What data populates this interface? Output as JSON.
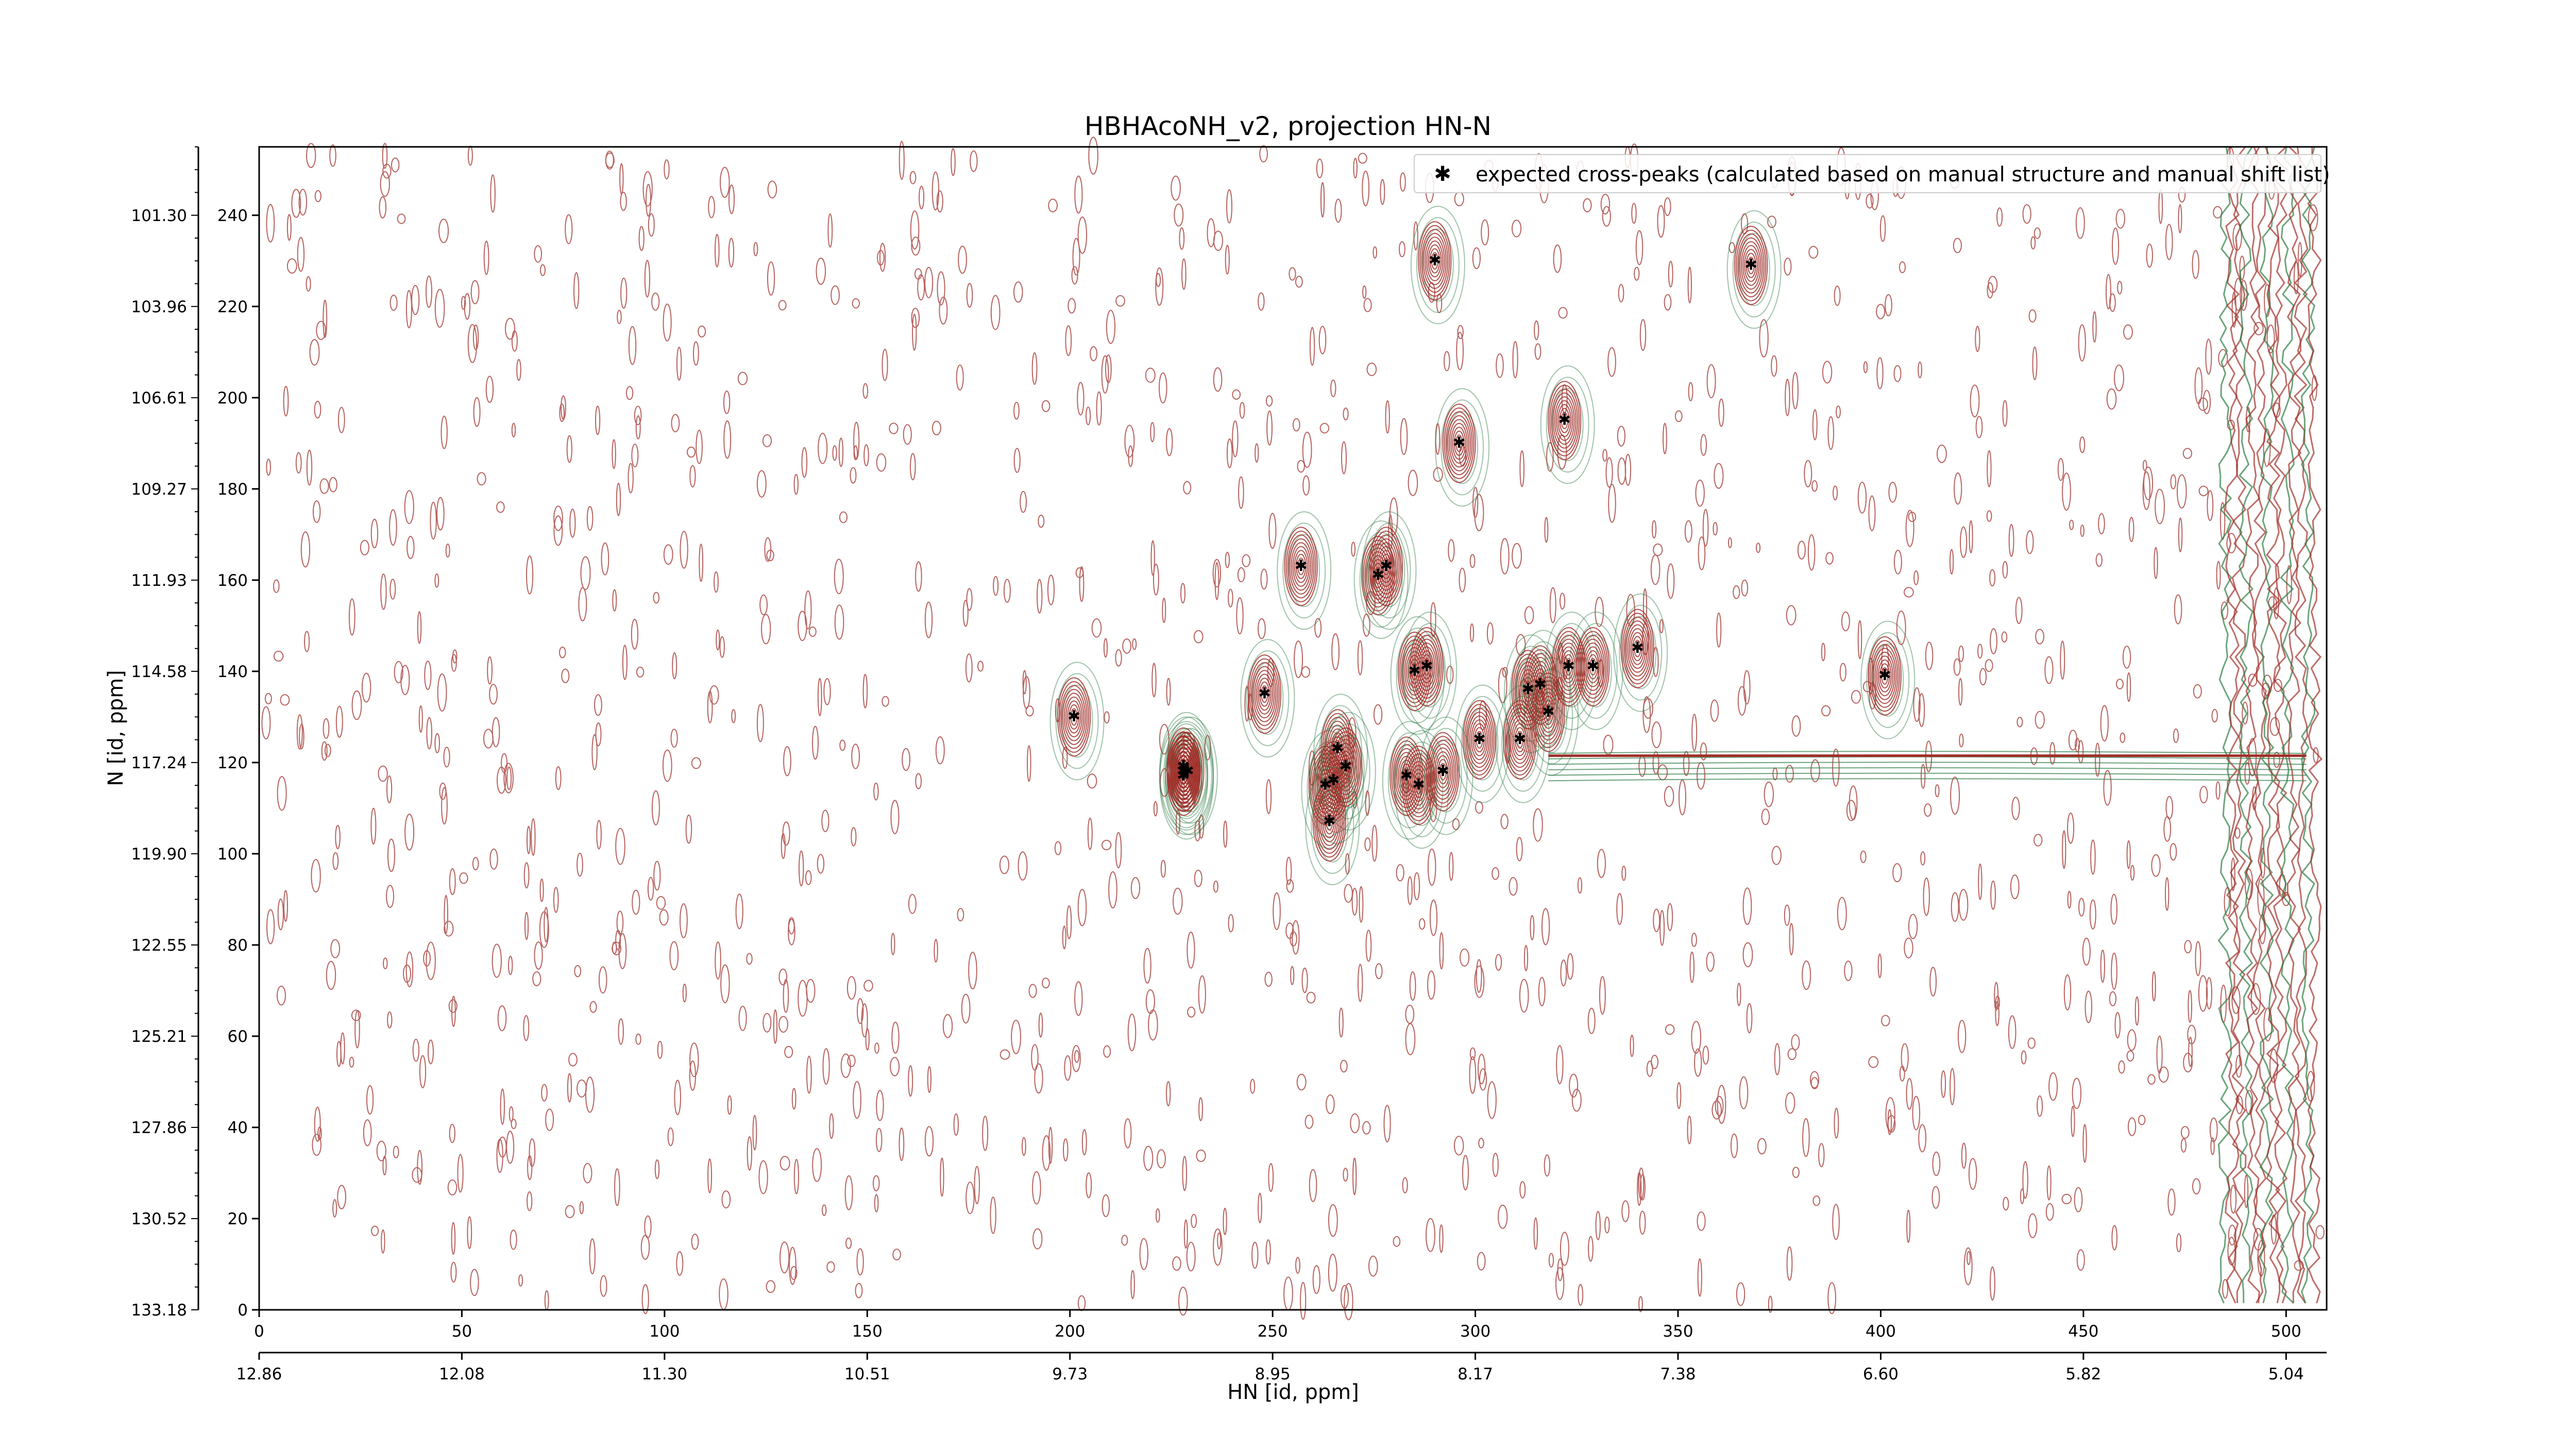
{
  "chart_data": {
    "type": "scatter",
    "title": "HBHAcoNH_v2, projection HN-N",
    "xlabel": "HN [id, ppm]",
    "ylabel": "N [id, ppm]",
    "x_index_ticks": [
      "0",
      "50",
      "100",
      "150",
      "200",
      "250",
      "300",
      "350",
      "400",
      "450",
      "500"
    ],
    "x_ppm_ticks": [
      "12.86",
      "12.08",
      "11.30",
      "10.51",
      "9.73",
      "8.95",
      "8.17",
      "7.38",
      "6.60",
      "5.82",
      "5.04"
    ],
    "y_index_ticks": [
      "0",
      "20",
      "40",
      "60",
      "80",
      "100",
      "120",
      "140",
      "160",
      "180",
      "200",
      "220",
      "240"
    ],
    "y_ppm_ticks": [
      "133.18",
      "130.52",
      "127.86",
      "125.21",
      "122.55",
      "119.90",
      "117.24",
      "114.58",
      "111.93",
      "109.27",
      "106.61",
      "103.96",
      "101.30"
    ],
    "xlim": [
      0,
      510
    ],
    "ylim": [
      0,
      255
    ],
    "grid": false,
    "legend_position": "top-right",
    "colors": {
      "contour_positive": "#a0302a",
      "contour_negative": "#2e7d45",
      "marker": "#0000ee"
    },
    "series": [
      {
        "name": "expected cross-peaks (calculated based on manual structure and manual shift list)",
        "points": [
          [
            201,
            130
          ],
          [
            290,
            230
          ],
          [
            368,
            229
          ],
          [
            296,
            190
          ],
          [
            322,
            195
          ],
          [
            257,
            163
          ],
          [
            276,
            161
          ],
          [
            278,
            163
          ],
          [
            248,
            135
          ],
          [
            285,
            140
          ],
          [
            288,
            141
          ],
          [
            313,
            136
          ],
          [
            316,
            137
          ],
          [
            318,
            131
          ],
          [
            323,
            141
          ],
          [
            329,
            141
          ],
          [
            340,
            145
          ],
          [
            401,
            139
          ],
          [
            311,
            125
          ],
          [
            301,
            125
          ],
          [
            263,
            115
          ],
          [
            265,
            116
          ],
          [
            266,
            123
          ],
          [
            268,
            119
          ],
          [
            283,
            117
          ],
          [
            286,
            115
          ],
          [
            292,
            118
          ],
          [
            264,
            107
          ],
          [
            229,
            118
          ],
          [
            228,
            119
          ],
          [
            228,
            117
          ],
          [
            228,
            118
          ],
          [
            228,
            117
          ],
          [
            228,
            118
          ],
          [
            228,
            119
          ],
          [
            228,
            118
          ],
          [
            229,
            118
          ],
          [
            228,
            117
          ],
          [
            228,
            118
          ],
          [
            228,
            118
          ],
          [
            228,
            119
          ],
          [
            228,
            118
          ],
          [
            228,
            118
          ],
          [
            228,
            117
          ],
          [
            228,
            118
          ],
          [
            228,
            119
          ],
          [
            229,
            118
          ],
          [
            228,
            118
          ],
          [
            228,
            119
          ],
          [
            228,
            117
          ],
          [
            229,
            118
          ],
          [
            228,
            118
          ],
          [
            228,
            118
          ],
          [
            228,
            119
          ],
          [
            228,
            118
          ],
          [
            228,
            117
          ],
          [
            229,
            118
          ],
          [
            228,
            118
          ],
          [
            228,
            118
          ],
          [
            228,
            119
          ],
          [
            228,
            118
          ],
          [
            228,
            117
          ],
          [
            229,
            118
          ],
          [
            228,
            118
          ],
          [
            228,
            118
          ],
          [
            228,
            118
          ],
          [
            228,
            119
          ],
          [
            228,
            118
          ],
          [
            228,
            117
          ],
          [
            229,
            118
          ],
          [
            228,
            118
          ],
          [
            228,
            118
          ],
          [
            228,
            119
          ],
          [
            228,
            118
          ],
          [
            228,
            118
          ],
          [
            228,
            117
          ],
          [
            228,
            118
          ],
          [
            228,
            118
          ],
          [
            228,
            119
          ],
          [
            228,
            118
          ],
          [
            228,
            118
          ],
          [
            228,
            117
          ],
          [
            228,
            118
          ],
          [
            228,
            118
          ],
          [
            228,
            119
          ],
          [
            228,
            118
          ],
          [
            228,
            118
          ],
          [
            228,
            117
          ],
          [
            228,
            118
          ],
          [
            228,
            118
          ],
          [
            228,
            119
          ],
          [
            228,
            118
          ],
          [
            228,
            118
          ],
          [
            228,
            117
          ],
          [
            228,
            118
          ],
          [
            228,
            118
          ],
          [
            228,
            119
          ],
          [
            228,
            118
          ],
          [
            228,
            118
          ],
          [
            228,
            117
          ],
          [
            228,
            118
          ],
          [
            228,
            118
          ],
          [
            228,
            119
          ],
          [
            228,
            118
          ],
          [
            228,
            118
          ],
          [
            228,
            117
          ],
          [
            228,
            118
          ],
          [
            228,
            118
          ],
          [
            228,
            119
          ],
          [
            228,
            118
          ],
          [
            228,
            118
          ],
          [
            228,
            117
          ],
          [
            228,
            118
          ],
          [
            228,
            118
          ],
          [
            228,
            119
          ],
          [
            228,
            118
          ],
          [
            228,
            118
          ],
          [
            228,
            117
          ],
          [
            228,
            118
          ],
          [
            228,
            118
          ],
          [
            228,
            119
          ],
          [
            228,
            118
          ],
          [
            228,
            118
          ],
          [
            228,
            117
          ],
          [
            228,
            118
          ],
          [
            228,
            118
          ],
          [
            228,
            119
          ],
          [
            228,
            118
          ],
          [
            228,
            118
          ],
          [
            228,
            117
          ],
          [
            228,
            118
          ],
          [
            228,
            118
          ],
          [
            228,
            119
          ],
          [
            228,
            118
          ],
          [
            228,
            118
          ],
          [
            228,
            117
          ],
          [
            228,
            118
          ],
          [
            228,
            118
          ],
          [
            228,
            119
          ],
          [
            228,
            118
          ],
          [
            228,
            118
          ],
          [
            228,
            117
          ],
          [
            228,
            118
          ],
          [
            228,
            118
          ],
          [
            228,
            119
          ],
          [
            228,
            118
          ],
          [
            228,
            118
          ],
          [
            228,
            117
          ],
          [
            228,
            118
          ],
          [
            228,
            118
          ],
          [
            228,
            119
          ],
          [
            228,
            118
          ],
          [
            228,
            118
          ],
          [
            228,
            117
          ],
          [
            228,
            118
          ],
          [
            228,
            118
          ],
          [
            228,
            119
          ],
          [
            228,
            118
          ],
          [
            228,
            118
          ],
          [
            228,
            117
          ],
          [
            228,
            118
          ],
          [
            228,
            118
          ],
          [
            228,
            119
          ],
          [
            228,
            118
          ],
          [
            228,
            118
          ],
          [
            228,
            117
          ],
          [
            228,
            118
          ],
          [
            228,
            118
          ],
          [
            228,
            119
          ],
          [
            228,
            118
          ],
          [
            228,
            118
          ],
          [
            228,
            117
          ],
          [
            228,
            118
          ],
          [
            228,
            118
          ],
          [
            228,
            119
          ],
          [
            228,
            118
          ],
          [
            228,
            118
          ],
          [
            228,
            117
          ],
          [
            228,
            118
          ],
          [
            228,
            118
          ],
          [
            228,
            119
          ],
          [
            228,
            118
          ],
          [
            228,
            118
          ],
          [
            228,
            117
          ],
          [
            228,
            118
          ],
          [
            228,
            118
          ],
          [
            228,
            119
          ],
          [
            228,
            118
          ],
          [
            228,
            118
          ],
          [
            228,
            117
          ],
          [
            228,
            118
          ],
          [
            228,
            118
          ],
          [
            228,
            119
          ],
          [
            228,
            118
          ],
          [
            228,
            118
          ],
          [
            228,
            117
          ],
          [
            228,
            118
          ],
          [
            228,
            118
          ],
          [
            228,
            119
          ],
          [
            228,
            118
          ],
          [
            228,
            118
          ],
          [
            228,
            117
          ],
          [
            228,
            118
          ],
          [
            228,
            118
          ],
          [
            228,
            119
          ],
          [
            228,
            118
          ],
          [
            228,
            118
          ],
          [
            228,
            117
          ],
          [
            228,
            118
          ],
          [
            228,
            118
          ],
          [
            228,
            119
          ],
          [
            228,
            118
          ],
          [
            228,
            118
          ],
          [
            228,
            117
          ],
          [
            228,
            118
          ],
          [
            228,
            118
          ],
          [
            228,
            119
          ],
          [
            228,
            118
          ],
          [
            228,
            118
          ],
          [
            228,
            117
          ],
          [
            228,
            118
          ],
          [
            228,
            118
          ],
          [
            228,
            119
          ],
          [
            228,
            118
          ],
          [
            228,
            118
          ],
          [
            228,
            117
          ],
          [
            228,
            118
          ],
          [
            228,
            118
          ],
          [
            228,
            119
          ],
          [
            228,
            118
          ],
          [
            228,
            118
          ],
          [
            228,
            117
          ],
          [
            228,
            118
          ],
          [
            228,
            118
          ],
          [
            228,
            119
          ],
          [
            228,
            118
          ],
          [
            228,
            118
          ],
          [
            228,
            117
          ],
          [
            228,
            118
          ],
          [
            228,
            118
          ],
          [
            228,
            119
          ],
          [
            228,
            118
          ],
          [
            228,
            118
          ],
          [
            228,
            117
          ],
          [
            228,
            118
          ],
          [
            228,
            118
          ],
          [
            228,
            119
          ],
          [
            228,
            118
          ],
          [
            228,
            118
          ],
          [
            228,
            117
          ],
          [
            228,
            118
          ],
          [
            228,
            118
          ],
          [
            228,
            119
          ],
          [
            228,
            118
          ],
          [
            228,
            118
          ],
          [
            228,
            117
          ],
          [
            228,
            118
          ],
          [
            228,
            118
          ],
          [
            228,
            119
          ],
          [
            228,
            118
          ],
          [
            228,
            118
          ],
          [
            228,
            117
          ],
          [
            228,
            118
          ],
          [
            228,
            118
          ],
          [
            228,
            119
          ],
          [
            228,
            118
          ],
          [
            228,
            118
          ],
          [
            228,
            117
          ],
          [
            228,
            118
          ],
          [
            228,
            118
          ],
          [
            228,
            119
          ],
          [
            228,
            118
          ],
          [
            228,
            118
          ],
          [
            228,
            117
          ],
          [
            228,
            118
          ],
          [
            228,
            118
          ],
          [
            228,
            119
          ],
          [
            228,
            118
          ],
          [
            228,
            118
          ],
          [
            228,
            117
          ],
          [
            228,
            118
          ],
          [
            228,
            118
          ],
          [
            228,
            119
          ],
          [
            228,
            118
          ],
          [
            228,
            118
          ]
        ]
      }
    ]
  }
}
